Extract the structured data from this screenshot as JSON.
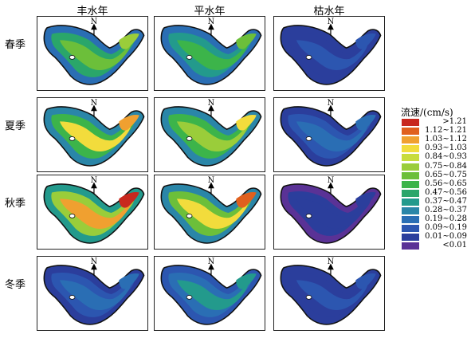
{
  "columns": [
    "丰水年",
    "平水年",
    "枯水年"
  ],
  "rows": [
    "春季",
    "夏季",
    "秋季",
    "冬季"
  ],
  "north_label": "N",
  "legend": {
    "title": "流速/(cm/s)",
    "items": [
      {
        "label": ">1.21",
        "color": "#c8281e"
      },
      {
        "label": "1.12~1.21",
        "color": "#e0601e"
      },
      {
        "label": "1.03~1.12",
        "color": "#f0a030"
      },
      {
        "label": "0.93~1.03",
        "color": "#f2dc3c"
      },
      {
        "label": "0.84~0.93",
        "color": "#c8dc3c"
      },
      {
        "label": "0.75~0.84",
        "color": "#9acd3a"
      },
      {
        "label": "0.65~0.75",
        "color": "#6cbf3a"
      },
      {
        "label": "0.56~0.65",
        "color": "#3cb44a"
      },
      {
        "label": "0.47~0.56",
        "color": "#2aa66a"
      },
      {
        "label": "0.37~0.47",
        "color": "#239a8c"
      },
      {
        "label": "0.28~0.37",
        "color": "#2a86a8"
      },
      {
        "label": "0.19~0.28",
        "color": "#2a6eb4"
      },
      {
        "label": "0.09~0.19",
        "color": "#2c56b0"
      },
      {
        "label": "0.01~0.09",
        "color": "#2b3e9c"
      },
      {
        "label": "<0.01",
        "color": "#5a3296"
      }
    ]
  },
  "panels": [
    [
      {
        "level": 0.62
      },
      {
        "level": 0.55
      },
      {
        "level": 0.14
      }
    ],
    [
      {
        "level": 0.82
      },
      {
        "level": 0.72
      },
      {
        "level": 0.22
      }
    ],
    [
      {
        "level": 0.95
      },
      {
        "level": 0.88
      },
      {
        "level": 0.06
      }
    ],
    [
      {
        "level": 0.22
      },
      {
        "level": 0.36
      },
      {
        "level": 0.12
      }
    ]
  ]
}
